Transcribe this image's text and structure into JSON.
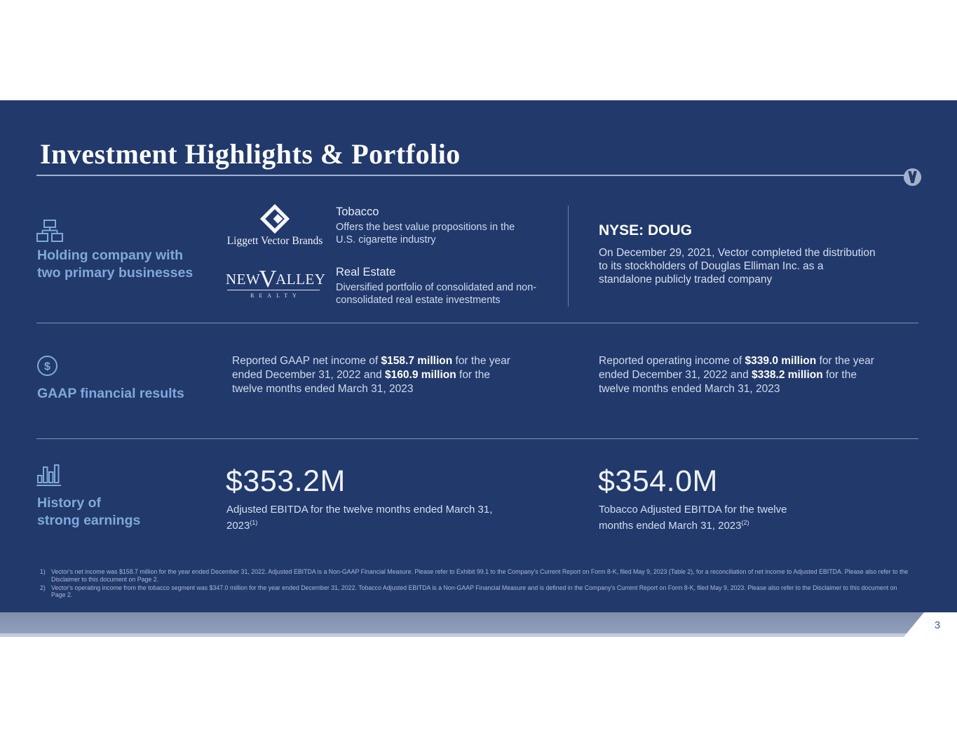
{
  "slide": {
    "title": "Investment Highlights & Portfolio",
    "page_number": "3"
  },
  "colors": {
    "background": "#22396b",
    "accent_text": "#7fa9db",
    "body_text": "#cfdbed",
    "bold_text": "#ffffff",
    "divider": "#9fb2cd",
    "footer_bar": "#8896b2",
    "page_number": "#3a5ba9"
  },
  "holding": {
    "icon": "org-chart-icon",
    "label_line1": "Holding company with",
    "label_line2": "two primary businesses",
    "tobacco": {
      "logo": "Liggett Vector Brands",
      "heading": "Tobacco",
      "description": "Offers the best value propositions in the U.S. cigarette industry"
    },
    "real_estate": {
      "logo_pre": "NEW",
      "logo_v": "V",
      "logo_post": "ALLEY",
      "logo_sub": "REALTY",
      "heading": "Real Estate",
      "description": "Diversified portfolio of consolidated and non-consolidated real estate investments"
    },
    "nyse": {
      "heading": "NYSE: DOUG",
      "description": "On December 29, 2021, Vector completed the distribution to its stockholders of Douglas Elliman Inc. as a standalone publicly traded company"
    }
  },
  "gaap": {
    "icon": "dollar-circle-icon",
    "label": "GAAP financial results",
    "left_segments": [
      {
        "t": "Reported GAAP net income of "
      },
      {
        "t": "$158.7 million",
        "b": true
      },
      {
        "t": " for the year ended December 31, 2022 and "
      },
      {
        "t": "$160.9 million",
        "b": true
      },
      {
        "t": " for the twelve months ended March 31, 2023"
      }
    ],
    "right_segments": [
      {
        "t": "Reported operating income of "
      },
      {
        "t": "$339.0 million",
        "b": true
      },
      {
        "t": " for the year ended December 31, 2022 and "
      },
      {
        "t": "$338.2 million",
        "b": true
      },
      {
        "t": " for the twelve months ended March 31, 2023"
      }
    ]
  },
  "earnings": {
    "icon": "bar-chart-icon",
    "label_line1": "History of",
    "label_line2": "strong earnings",
    "left": {
      "amount": "$353.2M",
      "caption_segments": [
        {
          "t": "Adjusted EBITDA for the twelve months ended March 31, 2023"
        },
        {
          "t": "(1)",
          "sup": true
        }
      ]
    },
    "right": {
      "amount": "$354.0M",
      "caption_segments": [
        {
          "t": "Tobacco Adjusted EBITDA for the twelve months ended March 31, 2023"
        },
        {
          "t": "(2)",
          "sup": true
        }
      ]
    }
  },
  "footnotes": [
    {
      "num": "1)",
      "text": "Vector's net income was $158.7 million for the year ended December 31, 2022. Adjusted EBITDA is a Non-GAAP Financial Measure. Please refer to Exhibit 99.1 to the Company's Current Report on Form 8-K, filed May 9, 2023 (Table 2), for a reconciliation of net income to Adjusted EBITDA. Please also refer to the Disclaimer to this document on Page 2."
    },
    {
      "num": "2)",
      "text": "Vector's operating income from the tobacco segment was $347.0 million for the year ended December 31, 2022. Tobacco Adjusted EBITDA is a Non-GAAP Financial Measure and is defined in the Company's Current Report on Form 8-K, filed May 9, 2023. Please also refer to the Disclaimer to this document on Page 2."
    }
  ]
}
